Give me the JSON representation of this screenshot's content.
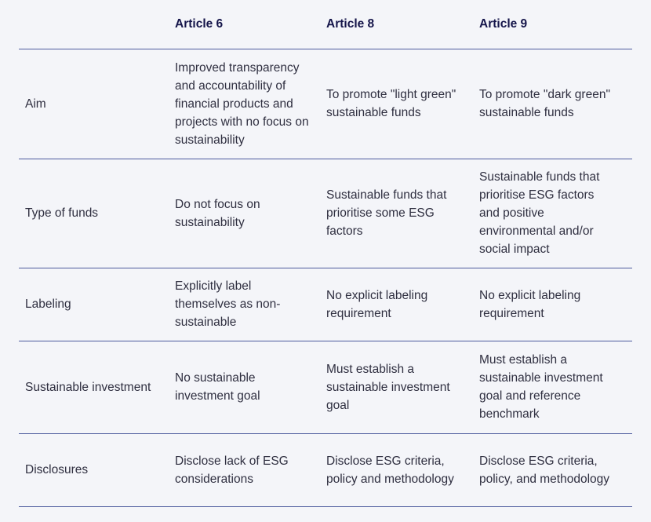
{
  "table": {
    "columns": [
      "Article 6",
      "Article 8",
      "Article 9"
    ],
    "rows": [
      {
        "label": "Aim",
        "cells": [
          "Improved transparency and accountability of financial products and projects with no focus on sustainability",
          "To promote \"light green\" sustainable funds",
          "To promote \"dark green\" sustainable funds"
        ]
      },
      {
        "label": "Type of funds",
        "cells": [
          "Do not focus on sustainability",
          "Sustainable funds that prioritise some ESG factors",
          "Sustainable funds that prioritise ESG factors and positive environmental and/or social impact"
        ]
      },
      {
        "label": "Labeling",
        "cells": [
          "Explicitly label themselves as non-sustainable",
          "No explicit labeling requirement",
          "No explicit labeling requirement"
        ]
      },
      {
        "label": "Sustainable investment",
        "cells": [
          "No sustainable investment goal",
          "Must establish a sustainable investment goal",
          "Must establish a sustainable investment goal and reference benchmark"
        ]
      },
      {
        "label": "Disclosures",
        "cells": [
          "Disclose lack of ESG considerations",
          "Disclose ESG criteria, policy and methodology",
          "Disclose ESG criteria, policy, and methodology"
        ]
      }
    ]
  },
  "colors": {
    "background": "#f4f5f9",
    "divider": "#4d5b9e",
    "header_text": "#15154a",
    "body_text": "#2f2f40"
  }
}
